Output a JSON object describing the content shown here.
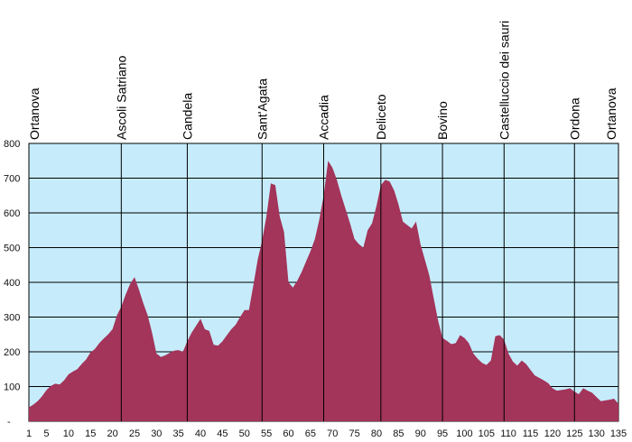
{
  "colors": {
    "plot_background": "#c6ecfb",
    "elevation_fill": "#a3345a",
    "grid_line": "#000000",
    "axis_text": "#111111"
  },
  "chart_data": {
    "type": "area",
    "title": "",
    "xlabel": "",
    "ylabel": "",
    "xlim": [
      1,
      135
    ],
    "ylim": [
      0,
      800
    ],
    "grid": true,
    "legend": "none",
    "x_ticks": [
      "1",
      "5",
      "10",
      "15",
      "20",
      "25",
      "30",
      "35",
      "40",
      "45",
      "50",
      "55",
      "60",
      "65",
      "70",
      "75",
      "80",
      "85",
      "90",
      "95",
      "100",
      "105",
      "110",
      "115",
      "120",
      "125",
      "130",
      "135"
    ],
    "y_ticks": [
      {
        "value": 0,
        "label": "-"
      },
      {
        "value": 100,
        "label": "100"
      },
      {
        "value": 200,
        "label": "200"
      },
      {
        "value": 300,
        "label": "300"
      },
      {
        "value": 400,
        "label": "400"
      },
      {
        "value": 500,
        "label": "500"
      },
      {
        "value": 600,
        "label": "600"
      },
      {
        "value": 700,
        "label": "700"
      },
      {
        "value": 800,
        "label": "800"
      }
    ],
    "places": [
      {
        "name": "Ortanova",
        "km": 1,
        "line": false
      },
      {
        "name": "Ascoli Satriano",
        "km": 22,
        "line": true
      },
      {
        "name": "Candela",
        "km": 37,
        "line": true
      },
      {
        "name": "Sant'Agata",
        "km": 54,
        "line": true
      },
      {
        "name": "Accadia",
        "km": 68,
        "line": true
      },
      {
        "name": "Deliceto",
        "km": 81,
        "line": true
      },
      {
        "name": "Bovino",
        "km": 95,
        "line": true
      },
      {
        "name": "Castelluccio dei sauri",
        "km": 109,
        "line": true
      },
      {
        "name": "Ordona",
        "km": 125,
        "line": true
      },
      {
        "name": "Ortanova",
        "km": 135,
        "line": false
      }
    ],
    "series": [
      {
        "x": [
          1,
          2,
          3,
          4,
          5,
          6,
          7,
          8,
          9,
          10,
          11,
          12,
          13,
          14,
          15,
          16,
          17,
          18,
          19,
          20,
          21,
          22,
          23,
          24,
          25,
          26,
          27,
          28,
          29,
          30,
          31,
          32,
          33,
          34,
          35,
          36,
          37,
          38,
          39,
          40,
          41,
          42,
          43,
          44,
          45,
          46,
          47,
          48,
          49,
          50,
          51,
          52,
          53,
          54,
          55,
          56,
          57,
          58,
          59,
          60,
          61,
          62,
          63,
          64,
          65,
          66,
          67,
          68,
          69,
          70,
          71,
          72,
          73,
          74,
          75,
          76,
          77,
          78,
          79,
          80,
          81,
          82,
          83,
          84,
          85,
          86,
          87,
          88,
          89,
          90,
          91,
          92,
          93,
          94,
          95,
          96,
          97,
          98,
          99,
          100,
          101,
          102,
          103,
          104,
          105,
          106,
          107,
          108,
          109,
          110,
          111,
          112,
          113,
          114,
          115,
          116,
          117,
          118,
          119,
          120,
          121,
          122,
          123,
          124,
          125,
          126,
          127,
          128,
          129,
          130,
          131,
          132,
          133,
          134,
          135
        ],
        "values": [
          40,
          48,
          58,
          72,
          90,
          102,
          108,
          106,
          118,
          135,
          143,
          150,
          165,
          178,
          198,
          208,
          225,
          238,
          250,
          265,
          305,
          330,
          365,
          395,
          415,
          380,
          340,
          305,
          255,
          195,
          185,
          190,
          197,
          203,
          205,
          200,
          230,
          255,
          275,
          295,
          265,
          260,
          220,
          218,
          230,
          248,
          265,
          278,
          300,
          320,
          320,
          390,
          465,
          520,
          590,
          685,
          680,
          590,
          545,
          400,
          385,
          405,
          430,
          460,
          490,
          525,
          580,
          650,
          750,
          730,
          695,
          650,
          610,
          570,
          525,
          510,
          500,
          550,
          570,
          620,
          680,
          695,
          690,
          665,
          625,
          575,
          565,
          555,
          575,
          510,
          465,
          420,
          355,
          290,
          240,
          232,
          222,
          225,
          248,
          240,
          225,
          195,
          180,
          168,
          162,
          175,
          245,
          248,
          235,
          195,
          172,
          160,
          175,
          165,
          148,
          132,
          125,
          118,
          110,
          95,
          88,
          90,
          92,
          95,
          85,
          78,
          95,
          88,
          82,
          70,
          58,
          60,
          62,
          65,
          50
        ]
      }
    ]
  }
}
